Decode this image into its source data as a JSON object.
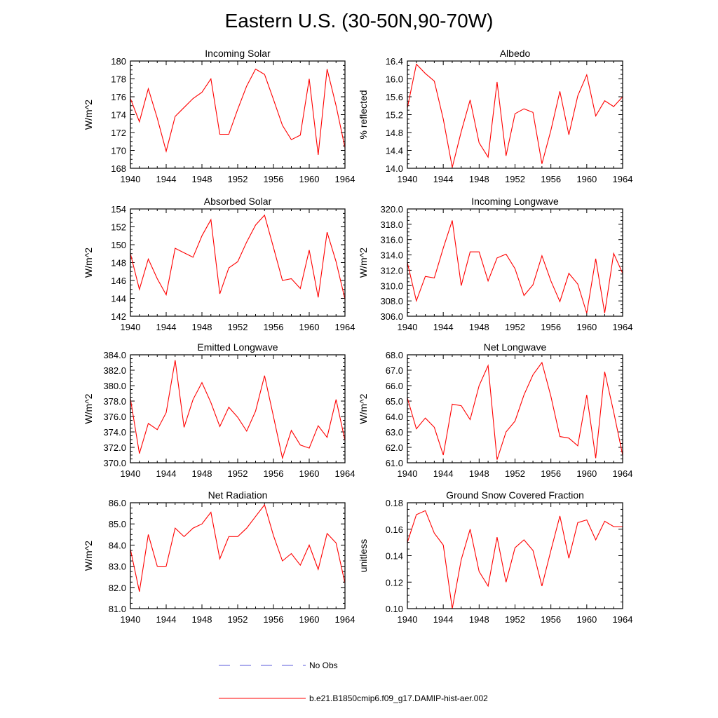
{
  "figure": {
    "title": "Eastern U.S. (30-50N,90-70W)"
  },
  "legend": {
    "entries": [
      {
        "label": "No Obs",
        "color": "#5a5adb",
        "dash": "dashed"
      },
      {
        "label": "b.e21.B1850cmip6.f09_g17.DAMIP-hist-aer.002",
        "color": "#ff0000",
        "dash": "solid"
      }
    ]
  },
  "chart_data": [
    {
      "type": "line",
      "title": "Incoming Solar",
      "ylabel": "W/m^2",
      "xlim": [
        1940,
        1964
      ],
      "ylim": [
        168,
        180
      ],
      "xticks": [
        1940,
        1944,
        1948,
        1952,
        1956,
        1960,
        1964
      ],
      "yticks": [
        168,
        170,
        172,
        174,
        176,
        178,
        180
      ],
      "ytick_labels": [
        "168",
        "170",
        "172",
        "174",
        "176",
        "178",
        "180"
      ],
      "x": [
        1940,
        1941,
        1942,
        1943,
        1944,
        1945,
        1946,
        1947,
        1948,
        1949,
        1950,
        1951,
        1952,
        1953,
        1954,
        1955,
        1956,
        1957,
        1958,
        1959,
        1960,
        1961,
        1962,
        1963,
        1964
      ],
      "series": [
        {
          "values": [
            175.8,
            173.2,
            176.9,
            173.6,
            169.9,
            173.8,
            174.8,
            175.8,
            176.5,
            178.0,
            171.8,
            171.8,
            174.6,
            177.2,
            179.1,
            178.5,
            175.7,
            172.8,
            171.2,
            171.7,
            178.0,
            169.5,
            179.1,
            175.0,
            170.3
          ],
          "color": "#ff0000"
        }
      ]
    },
    {
      "type": "line",
      "title": "Albedo",
      "ylabel": "% reflected",
      "xlim": [
        1940,
        1964
      ],
      "ylim": [
        14.0,
        16.4
      ],
      "xticks": [
        1940,
        1944,
        1948,
        1952,
        1956,
        1960,
        1964
      ],
      "yticks": [
        14.0,
        14.4,
        14.8,
        15.2,
        15.6,
        16.0,
        16.4
      ],
      "ytick_labels": [
        "14.0",
        "14.4",
        "14.8",
        "15.2",
        "15.6",
        "16.0",
        "16.4"
      ],
      "x": [
        1940,
        1941,
        1942,
        1943,
        1944,
        1945,
        1946,
        1947,
        1948,
        1949,
        1950,
        1951,
        1952,
        1953,
        1954,
        1955,
        1956,
        1957,
        1958,
        1959,
        1960,
        1961,
        1962,
        1963,
        1964
      ],
      "series": [
        {
          "values": [
            15.35,
            16.33,
            16.12,
            15.95,
            15.1,
            14.02,
            14.82,
            15.53,
            14.57,
            14.25,
            15.93,
            14.28,
            15.22,
            15.33,
            15.25,
            14.1,
            14.85,
            15.72,
            14.75,
            15.62,
            16.09,
            15.17,
            15.51,
            15.38,
            15.6
          ],
          "color": "#ff0000"
        }
      ]
    },
    {
      "type": "line",
      "title": "Absorbed Solar",
      "ylabel": "W/m^2",
      "xlim": [
        1940,
        1964
      ],
      "ylim": [
        142,
        154
      ],
      "xticks": [
        1940,
        1944,
        1948,
        1952,
        1956,
        1960,
        1964
      ],
      "yticks": [
        142,
        144,
        146,
        148,
        150,
        152,
        154
      ],
      "ytick_labels": [
        "142",
        "144",
        "146",
        "148",
        "150",
        "152",
        "154"
      ],
      "x": [
        1940,
        1941,
        1942,
        1943,
        1944,
        1945,
        1946,
        1947,
        1948,
        1949,
        1950,
        1951,
        1952,
        1953,
        1954,
        1955,
        1956,
        1957,
        1958,
        1959,
        1960,
        1961,
        1962,
        1963,
        1964
      ],
      "series": [
        {
          "values": [
            149.0,
            145.0,
            148.4,
            146.2,
            144.4,
            149.6,
            149.1,
            148.6,
            151.0,
            152.8,
            144.5,
            147.4,
            148.1,
            150.3,
            152.2,
            153.3,
            149.7,
            146.0,
            146.2,
            145.1,
            149.4,
            144.1,
            151.4,
            148.1,
            143.9
          ],
          "color": "#ff0000"
        }
      ]
    },
    {
      "type": "line",
      "title": "Incoming Longwave",
      "ylabel": "W/m^2",
      "xlim": [
        1940,
        1964
      ],
      "ylim": [
        306.0,
        320.0
      ],
      "xticks": [
        1940,
        1944,
        1948,
        1952,
        1956,
        1960,
        1964
      ],
      "yticks": [
        306,
        308,
        310,
        312,
        314,
        316,
        318,
        320
      ],
      "ytick_labels": [
        "306.0",
        "308.0",
        "310.0",
        "312.0",
        "314.0",
        "316.0",
        "318.0",
        "320.0"
      ],
      "x": [
        1940,
        1941,
        1942,
        1943,
        1944,
        1945,
        1946,
        1947,
        1948,
        1949,
        1950,
        1951,
        1952,
        1953,
        1954,
        1955,
        1956,
        1957,
        1958,
        1959,
        1960,
        1961,
        1962,
        1963,
        1964
      ],
      "series": [
        {
          "values": [
            313.0,
            308.0,
            311.2,
            311.0,
            314.9,
            318.5,
            310.0,
            314.4,
            314.4,
            310.6,
            313.6,
            314.1,
            312.2,
            308.7,
            310.1,
            313.9,
            310.6,
            307.9,
            311.6,
            310.2,
            306.4,
            313.5,
            306.4,
            314.2,
            311.6
          ],
          "color": "#ff0000"
        }
      ]
    },
    {
      "type": "line",
      "title": "Emitted Longwave",
      "ylabel": "W/m^2",
      "xlim": [
        1940,
        1964
      ],
      "ylim": [
        370.0,
        384.0
      ],
      "xticks": [
        1940,
        1944,
        1948,
        1952,
        1956,
        1960,
        1964
      ],
      "yticks": [
        370,
        372,
        374,
        376,
        378,
        380,
        382,
        384
      ],
      "ytick_labels": [
        "370.0",
        "372.0",
        "374.0",
        "376.0",
        "378.0",
        "380.0",
        "382.0",
        "384.0"
      ],
      "x": [
        1940,
        1941,
        1942,
        1943,
        1944,
        1945,
        1946,
        1947,
        1948,
        1949,
        1950,
        1951,
        1952,
        1953,
        1954,
        1955,
        1956,
        1957,
        1958,
        1959,
        1960,
        1961,
        1962,
        1963,
        1964
      ],
      "series": [
        {
          "values": [
            378.3,
            371.2,
            375.1,
            374.3,
            376.5,
            383.3,
            374.6,
            378.2,
            380.4,
            377.8,
            374.7,
            377.2,
            375.9,
            374.1,
            376.7,
            381.3,
            376.0,
            370.6,
            374.2,
            372.3,
            371.9,
            374.8,
            373.3,
            378.2,
            372.9
          ],
          "color": "#ff0000"
        }
      ]
    },
    {
      "type": "line",
      "title": "Net Longwave",
      "ylabel": "W/m^2",
      "xlim": [
        1940,
        1964
      ],
      "ylim": [
        61.0,
        68.0
      ],
      "xticks": [
        1940,
        1944,
        1948,
        1952,
        1956,
        1960,
        1964
      ],
      "yticks": [
        61,
        62,
        63,
        64,
        65,
        66,
        67,
        68
      ],
      "ytick_labels": [
        "61.0",
        "62.0",
        "63.0",
        "64.0",
        "65.0",
        "66.0",
        "67.0",
        "68.0"
      ],
      "x": [
        1940,
        1941,
        1942,
        1943,
        1944,
        1945,
        1946,
        1947,
        1948,
        1949,
        1950,
        1951,
        1952,
        1953,
        1954,
        1955,
        1956,
        1957,
        1958,
        1959,
        1960,
        1961,
        1962,
        1963,
        1964
      ],
      "series": [
        {
          "values": [
            65.2,
            63.2,
            63.9,
            63.3,
            61.5,
            64.8,
            64.7,
            63.8,
            66.0,
            67.3,
            61.2,
            63.0,
            63.7,
            65.4,
            66.7,
            67.5,
            65.3,
            62.7,
            62.6,
            62.1,
            65.4,
            61.3,
            66.9,
            64.3,
            61.5
          ],
          "color": "#ff0000"
        }
      ]
    },
    {
      "type": "line",
      "title": "Net Radiation",
      "ylabel": "W/m^2",
      "xlim": [
        1940,
        1964
      ],
      "ylim": [
        81.0,
        86.0
      ],
      "xticks": [
        1940,
        1944,
        1948,
        1952,
        1956,
        1960,
        1964
      ],
      "yticks": [
        81,
        82,
        83,
        84,
        85,
        86
      ],
      "ytick_labels": [
        "81.0",
        "82.0",
        "83.0",
        "84.0",
        "85.0",
        "86.0"
      ],
      "x": [
        1940,
        1941,
        1942,
        1943,
        1944,
        1945,
        1946,
        1947,
        1948,
        1949,
        1950,
        1951,
        1952,
        1953,
        1954,
        1955,
        1956,
        1957,
        1958,
        1959,
        1960,
        1961,
        1962,
        1963,
        1964
      ],
      "series": [
        {
          "values": [
            83.8,
            81.8,
            84.5,
            83.0,
            83.0,
            84.8,
            84.4,
            84.8,
            85.0,
            85.55,
            83.35,
            84.4,
            84.4,
            84.8,
            85.35,
            85.9,
            84.45,
            83.25,
            83.6,
            83.05,
            84.0,
            82.85,
            84.55,
            84.1,
            82.2
          ],
          "color": "#ff0000"
        }
      ]
    },
    {
      "type": "line",
      "title": "Ground Snow Covered Fraction",
      "ylabel": "unitless",
      "xlim": [
        1940,
        1964
      ],
      "ylim": [
        0.1,
        0.18
      ],
      "xticks": [
        1940,
        1944,
        1948,
        1952,
        1956,
        1960,
        1964
      ],
      "yticks": [
        0.1,
        0.12,
        0.14,
        0.16,
        0.18
      ],
      "ytick_labels": [
        "0.10",
        "0.12",
        "0.14",
        "0.16",
        "0.18"
      ],
      "x": [
        1940,
        1941,
        1942,
        1943,
        1944,
        1945,
        1946,
        1947,
        1948,
        1949,
        1950,
        1951,
        1952,
        1953,
        1954,
        1955,
        1956,
        1957,
        1958,
        1959,
        1960,
        1961,
        1962,
        1963,
        1964
      ],
      "series": [
        {
          "values": [
            0.15,
            0.171,
            0.174,
            0.157,
            0.148,
            0.1,
            0.137,
            0.16,
            0.128,
            0.117,
            0.154,
            0.12,
            0.146,
            0.152,
            0.144,
            0.117,
            0.144,
            0.17,
            0.138,
            0.165,
            0.167,
            0.152,
            0.166,
            0.162,
            0.162
          ],
          "color": "#ff0000"
        }
      ]
    }
  ]
}
